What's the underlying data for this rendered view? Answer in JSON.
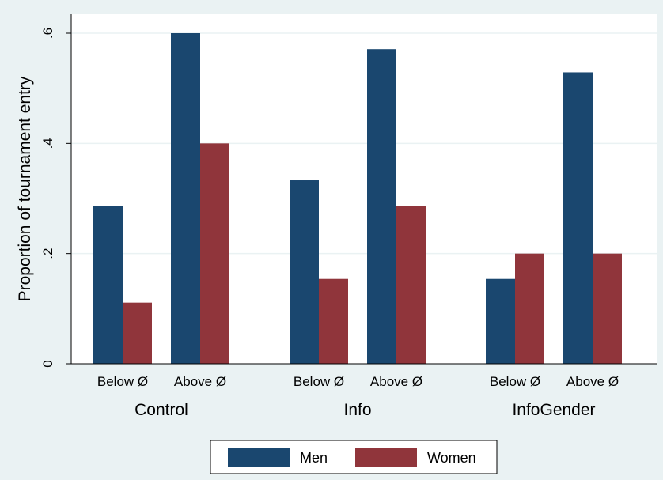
{
  "chart_data": {
    "type": "bar",
    "ylabel": "Proportion of tournament entry",
    "ylim": [
      0,
      0.63
    ],
    "yticks": [
      0,
      0.2,
      0.4,
      0.6
    ],
    "ytick_labels": [
      "0",
      ".2",
      ".4",
      ".6"
    ],
    "grid": true,
    "legend_position": "bottom",
    "groups": [
      {
        "label": "Control",
        "subgroups": [
          {
            "label": "Below Ø",
            "values": [
              0.286,
              0.111
            ]
          },
          {
            "label": "Above Ø",
            "values": [
              0.6,
              0.4
            ]
          }
        ]
      },
      {
        "label": "Info",
        "subgroups": [
          {
            "label": "Below Ø",
            "values": [
              0.333,
              0.154
            ]
          },
          {
            "label": "Above Ø",
            "values": [
              0.571,
              0.286
            ]
          }
        ]
      },
      {
        "label": "InfoGender",
        "subgroups": [
          {
            "label": "Below Ø",
            "values": [
              0.154,
              0.2
            ]
          },
          {
            "label": "Above Ø",
            "values": [
              0.529,
              0.2
            ]
          }
        ]
      }
    ],
    "series": [
      {
        "name": "Men",
        "color": "#1a476f"
      },
      {
        "name": "Women",
        "color": "#90353b"
      }
    ]
  }
}
